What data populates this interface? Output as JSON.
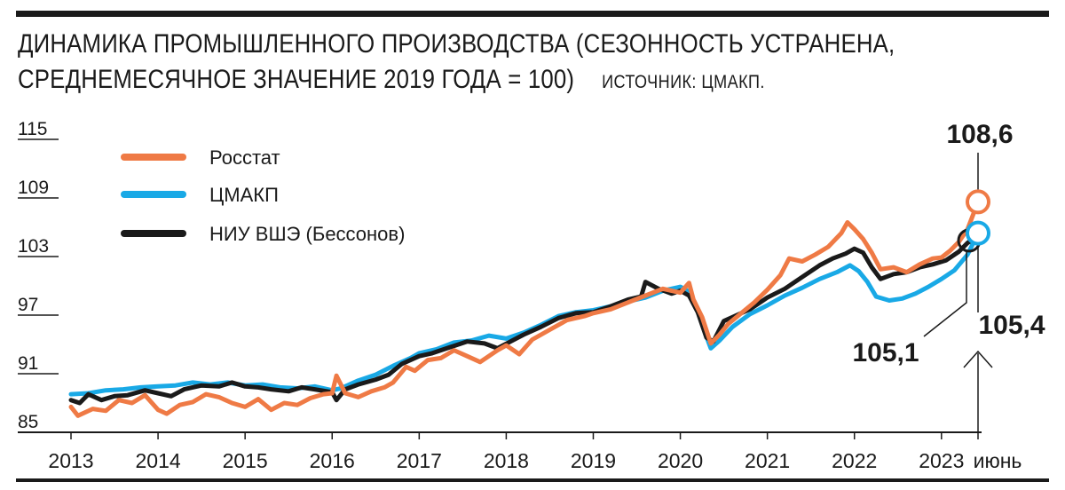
{
  "title": {
    "line1": "ДИНАМИКА ПРОМЫШЛЕННОГО ПРОИЗВОДСТВА (СЕЗОННОСТЬ УСТРАНЕНА,",
    "line2": "СРЕДНЕМЕСЯЧНОЕ ЗНАЧЕНИЕ 2019 ГОДА = 100)",
    "source": "ИСТОЧНИК: ЦМАКП."
  },
  "colors": {
    "rosstat": "#ef7a45",
    "cmakp": "#19a9e6",
    "hse": "#1a1a1a",
    "axis": "#1a1a1a"
  },
  "chart_data": {
    "type": "line",
    "title": "ДИНАМИКА ПРОМЫШЛЕННОГО ПРОИЗВОДСТВА (СЕЗОННОСТЬ УСТРАНЕНА, СРЕДНЕМЕСЯЧНОЕ ЗНАЧЕНИЕ 2019 ГОДА = 100)",
    "xlabel": "",
    "ylabel": "",
    "ylim": [
      85,
      115
    ],
    "yticks": [
      "115",
      "109",
      "103",
      "97",
      "91",
      "85"
    ],
    "ytick_values": [
      115,
      109,
      103,
      97,
      91,
      85
    ],
    "xticks": [
      "2013",
      "2014",
      "2015",
      "2016",
      "2017",
      "2018",
      "2019",
      "2020",
      "2021",
      "2022",
      "2023",
      "июнь"
    ],
    "xtick_values": [
      2013,
      2014,
      2015,
      2016,
      2017,
      2018,
      2019,
      2020,
      2021,
      2022,
      2023,
      2023.42
    ],
    "grid": false,
    "legend_position": "top-left",
    "series": [
      {
        "name": "Росстат",
        "color_key": "rosstat",
        "end_label": "108,6",
        "points": [
          [
            2013.0,
            87.6
          ],
          [
            2013.08,
            86.7
          ],
          [
            2013.25,
            87.4
          ],
          [
            2013.4,
            87.2
          ],
          [
            2013.55,
            88.3
          ],
          [
            2013.7,
            88.0
          ],
          [
            2013.85,
            88.8
          ],
          [
            2014.0,
            87.3
          ],
          [
            2014.1,
            86.9
          ],
          [
            2014.25,
            87.8
          ],
          [
            2014.4,
            88.1
          ],
          [
            2014.55,
            88.9
          ],
          [
            2014.7,
            88.6
          ],
          [
            2014.85,
            88.0
          ],
          [
            2015.0,
            87.6
          ],
          [
            2015.15,
            88.4
          ],
          [
            2015.3,
            87.3
          ],
          [
            2015.45,
            88.0
          ],
          [
            2015.6,
            87.8
          ],
          [
            2015.75,
            88.5
          ],
          [
            2015.9,
            88.9
          ],
          [
            2016.0,
            89.0
          ],
          [
            2016.05,
            90.8
          ],
          [
            2016.15,
            89.0
          ],
          [
            2016.3,
            88.6
          ],
          [
            2016.45,
            89.2
          ],
          [
            2016.6,
            89.6
          ],
          [
            2016.7,
            90.1
          ],
          [
            2016.85,
            91.7
          ],
          [
            2016.95,
            91.3
          ],
          [
            2017.1,
            92.4
          ],
          [
            2017.25,
            92.6
          ],
          [
            2017.4,
            93.4
          ],
          [
            2017.55,
            92.8
          ],
          [
            2017.7,
            92.2
          ],
          [
            2017.9,
            93.4
          ],
          [
            2018.0,
            93.9
          ],
          [
            2018.15,
            93.0
          ],
          [
            2018.3,
            94.5
          ],
          [
            2018.5,
            95.5
          ],
          [
            2018.7,
            96.5
          ],
          [
            2018.9,
            96.9
          ],
          [
            2019.0,
            97.2
          ],
          [
            2019.2,
            97.6
          ],
          [
            2019.4,
            98.3
          ],
          [
            2019.6,
            99.0
          ],
          [
            2019.8,
            99.7
          ],
          [
            2020.0,
            99.3
          ],
          [
            2020.1,
            100.3
          ],
          [
            2020.15,
            98.6
          ],
          [
            2020.25,
            96.8
          ],
          [
            2020.35,
            94.1
          ],
          [
            2020.45,
            95.0
          ],
          [
            2020.55,
            96.1
          ],
          [
            2020.7,
            97.2
          ],
          [
            2020.85,
            98.3
          ],
          [
            2021.0,
            99.6
          ],
          [
            2021.15,
            101.1
          ],
          [
            2021.25,
            102.8
          ],
          [
            2021.4,
            102.5
          ],
          [
            2021.55,
            103.2
          ],
          [
            2021.7,
            104.0
          ],
          [
            2021.85,
            105.4
          ],
          [
            2021.92,
            106.5
          ],
          [
            2022.0,
            105.8
          ],
          [
            2022.1,
            104.8
          ],
          [
            2022.2,
            103.4
          ],
          [
            2022.3,
            101.7
          ],
          [
            2022.45,
            101.9
          ],
          [
            2022.6,
            101.4
          ],
          [
            2022.75,
            102.2
          ],
          [
            2022.9,
            102.8
          ],
          [
            2023.0,
            102.9
          ],
          [
            2023.1,
            103.6
          ],
          [
            2023.2,
            104.5
          ],
          [
            2023.3,
            105.8
          ],
          [
            2023.42,
            108.6
          ]
        ]
      },
      {
        "name": "ЦМАКП",
        "color_key": "cmakp",
        "end_label": "105,4",
        "points": [
          [
            2013.0,
            88.9
          ],
          [
            2013.2,
            89.0
          ],
          [
            2013.4,
            89.3
          ],
          [
            2013.6,
            89.4
          ],
          [
            2013.8,
            89.6
          ],
          [
            2014.0,
            89.7
          ],
          [
            2014.2,
            89.8
          ],
          [
            2014.4,
            90.1
          ],
          [
            2014.6,
            89.9
          ],
          [
            2014.8,
            90.1
          ],
          [
            2015.0,
            89.8
          ],
          [
            2015.2,
            89.9
          ],
          [
            2015.4,
            89.6
          ],
          [
            2015.6,
            89.5
          ],
          [
            2015.8,
            89.7
          ],
          [
            2016.0,
            89.3
          ],
          [
            2016.1,
            89.5
          ],
          [
            2016.3,
            90.3
          ],
          [
            2016.5,
            90.9
          ],
          [
            2016.7,
            91.8
          ],
          [
            2016.9,
            92.6
          ],
          [
            2017.0,
            93.1
          ],
          [
            2017.2,
            93.5
          ],
          [
            2017.4,
            94.2
          ],
          [
            2017.6,
            94.4
          ],
          [
            2017.8,
            94.9
          ],
          [
            2018.0,
            94.6
          ],
          [
            2018.2,
            95.2
          ],
          [
            2018.4,
            96.0
          ],
          [
            2018.6,
            96.9
          ],
          [
            2018.8,
            97.3
          ],
          [
            2019.0,
            97.5
          ],
          [
            2019.2,
            97.9
          ],
          [
            2019.4,
            98.4
          ],
          [
            2019.6,
            98.8
          ],
          [
            2019.8,
            99.5
          ],
          [
            2020.0,
            99.9
          ],
          [
            2020.1,
            99.4
          ],
          [
            2020.2,
            97.5
          ],
          [
            2020.3,
            94.8
          ],
          [
            2020.35,
            93.6
          ],
          [
            2020.45,
            94.4
          ],
          [
            2020.6,
            95.8
          ],
          [
            2020.8,
            97.1
          ],
          [
            2021.0,
            98.0
          ],
          [
            2021.2,
            99.0
          ],
          [
            2021.4,
            99.8
          ],
          [
            2021.6,
            100.7
          ],
          [
            2021.8,
            101.4
          ],
          [
            2021.95,
            102.1
          ],
          [
            2022.05,
            101.5
          ],
          [
            2022.15,
            100.4
          ],
          [
            2022.25,
            98.9
          ],
          [
            2022.4,
            98.5
          ],
          [
            2022.55,
            98.7
          ],
          [
            2022.7,
            99.2
          ],
          [
            2022.85,
            99.9
          ],
          [
            2023.0,
            100.7
          ],
          [
            2023.15,
            101.6
          ],
          [
            2023.3,
            103.2
          ],
          [
            2023.42,
            105.4
          ]
        ]
      },
      {
        "name": "НИУ ВШЭ (Бессонов)",
        "color_key": "hse",
        "end_label": "105,1",
        "points": [
          [
            2013.0,
            88.3
          ],
          [
            2013.1,
            88.0
          ],
          [
            2013.2,
            88.9
          ],
          [
            2013.35,
            88.3
          ],
          [
            2013.5,
            88.7
          ],
          [
            2013.65,
            88.8
          ],
          [
            2013.85,
            89.3
          ],
          [
            2014.0,
            89.0
          ],
          [
            2014.15,
            88.7
          ],
          [
            2014.3,
            89.4
          ],
          [
            2014.5,
            89.8
          ],
          [
            2014.7,
            89.7
          ],
          [
            2014.85,
            90.1
          ],
          [
            2015.0,
            89.7
          ],
          [
            2015.15,
            89.6
          ],
          [
            2015.3,
            89.4
          ],
          [
            2015.5,
            89.2
          ],
          [
            2015.65,
            89.6
          ],
          [
            2015.8,
            89.4
          ],
          [
            2016.0,
            89.1
          ],
          [
            2016.05,
            88.3
          ],
          [
            2016.15,
            89.4
          ],
          [
            2016.3,
            89.9
          ],
          [
            2016.5,
            90.4
          ],
          [
            2016.65,
            90.9
          ],
          [
            2016.8,
            92.0
          ],
          [
            2017.0,
            92.8
          ],
          [
            2017.15,
            93.1
          ],
          [
            2017.35,
            93.7
          ],
          [
            2017.55,
            94.3
          ],
          [
            2017.75,
            94.1
          ],
          [
            2017.9,
            93.6
          ],
          [
            2018.05,
            94.3
          ],
          [
            2018.2,
            95.0
          ],
          [
            2018.4,
            95.8
          ],
          [
            2018.6,
            96.7
          ],
          [
            2018.8,
            97.2
          ],
          [
            2019.0,
            97.3
          ],
          [
            2019.2,
            97.9
          ],
          [
            2019.4,
            98.6
          ],
          [
            2019.55,
            98.9
          ],
          [
            2019.6,
            100.4
          ],
          [
            2019.75,
            99.7
          ],
          [
            2019.9,
            99.2
          ],
          [
            2020.0,
            99.5
          ],
          [
            2020.1,
            99.0
          ],
          [
            2020.2,
            97.3
          ],
          [
            2020.3,
            94.7
          ],
          [
            2020.38,
            94.3
          ],
          [
            2020.5,
            96.4
          ],
          [
            2020.65,
            97.0
          ],
          [
            2020.8,
            97.6
          ],
          [
            2021.0,
            98.8
          ],
          [
            2021.2,
            99.7
          ],
          [
            2021.4,
            100.9
          ],
          [
            2021.6,
            102.1
          ],
          [
            2021.75,
            102.8
          ],
          [
            2021.9,
            103.3
          ],
          [
            2022.0,
            103.8
          ],
          [
            2022.1,
            103.4
          ],
          [
            2022.2,
            101.9
          ],
          [
            2022.3,
            100.7
          ],
          [
            2022.45,
            101.2
          ],
          [
            2022.6,
            101.4
          ],
          [
            2022.75,
            101.9
          ],
          [
            2022.9,
            102.2
          ],
          [
            2023.05,
            102.6
          ],
          [
            2023.2,
            103.5
          ],
          [
            2023.3,
            104.4
          ],
          [
            2023.42,
            105.1
          ]
        ]
      }
    ]
  }
}
